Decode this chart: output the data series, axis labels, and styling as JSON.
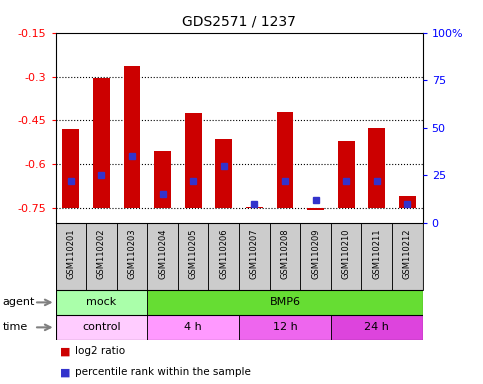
{
  "title": "GDS2571 / 1237",
  "samples": [
    "GSM110201",
    "GSM110202",
    "GSM110203",
    "GSM110204",
    "GSM110205",
    "GSM110206",
    "GSM110207",
    "GSM110208",
    "GSM110209",
    "GSM110210",
    "GSM110211",
    "GSM110212"
  ],
  "log2_ratio": [
    -0.48,
    -0.305,
    -0.265,
    -0.555,
    -0.425,
    -0.515,
    -0.745,
    -0.42,
    -0.755,
    -0.52,
    -0.475,
    -0.71
  ],
  "percentile_rank": [
    22,
    25,
    35,
    15,
    22,
    30,
    10,
    22,
    12,
    22,
    22,
    10
  ],
  "ylim_left": [
    -0.8,
    -0.15
  ],
  "ylim_right": [
    0,
    100
  ],
  "yticks_left": [
    -0.75,
    -0.6,
    -0.45,
    -0.3,
    -0.15
  ],
  "yticks_right": [
    0,
    25,
    50,
    75,
    100
  ],
  "ytick_right_labels": [
    "0",
    "25",
    "50",
    "75",
    "100%"
  ],
  "bar_color": "#cc0000",
  "dot_color": "#3333cc",
  "agent_groups": [
    {
      "label": "mock",
      "start": 0,
      "end": 3,
      "color": "#aaffaa"
    },
    {
      "label": "BMP6",
      "start": 3,
      "end": 12,
      "color": "#66dd33"
    }
  ],
  "time_groups": [
    {
      "label": "control",
      "start": 0,
      "end": 3,
      "color": "#ffccff"
    },
    {
      "label": "4 h",
      "start": 3,
      "end": 6,
      "color": "#ff99ff"
    },
    {
      "label": "12 h",
      "start": 6,
      "end": 9,
      "color": "#ee66ee"
    },
    {
      "label": "24 h",
      "start": 9,
      "end": 12,
      "color": "#dd44dd"
    }
  ],
  "legend_red": "log2 ratio",
  "legend_blue": "percentile rank within the sample"
}
